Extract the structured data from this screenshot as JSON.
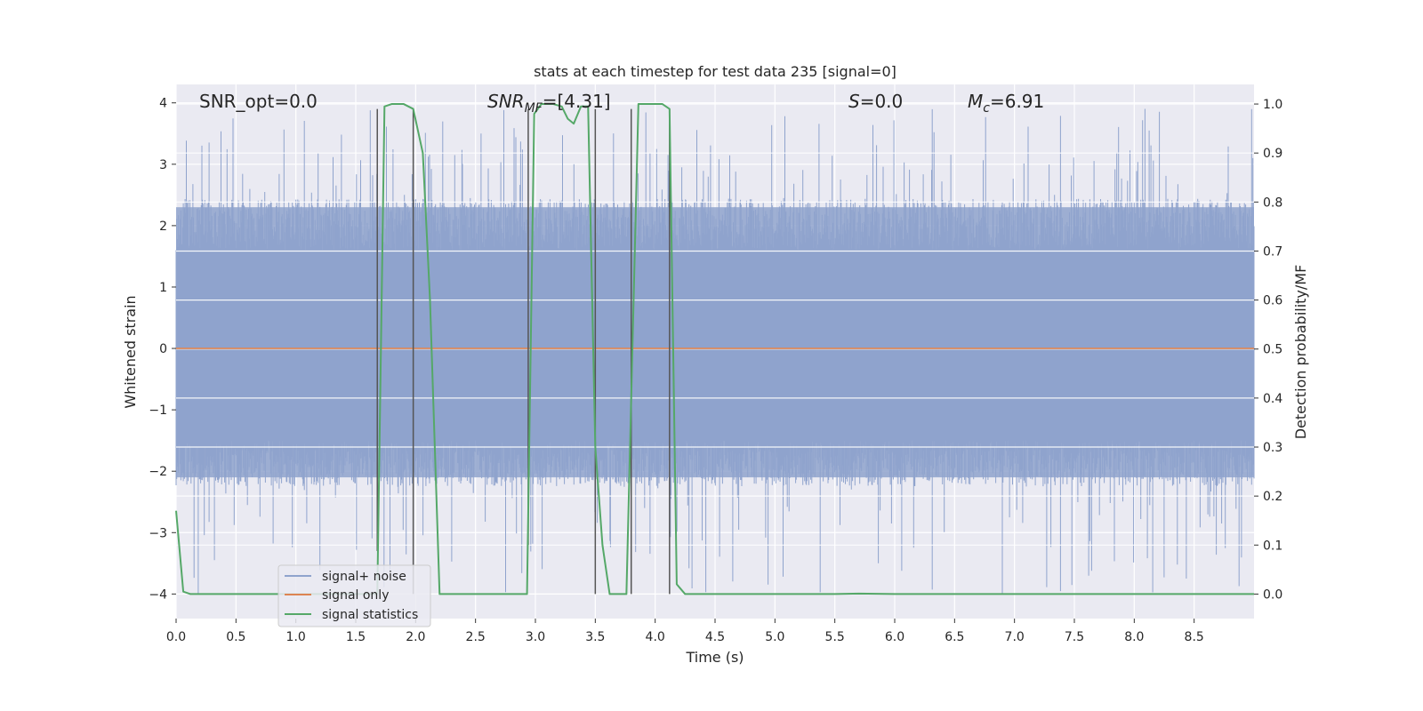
{
  "chart_data": {
    "type": "line",
    "title": "stats at each timestep for test data 235 [signal=0]",
    "xlabel": "Time (s)",
    "ylabel_left": "Whitened strain",
    "ylabel_right": "Detection probability/MF",
    "xlim": [
      0.0,
      9.0
    ],
    "ylim_left": [
      -4.4,
      4.3
    ],
    "ylim_right": [
      -0.05,
      1.04
    ],
    "x_ticks": [
      "0.0",
      "0.5",
      "1.0",
      "1.5",
      "2.0",
      "2.5",
      "3.0",
      "3.5",
      "4.0",
      "4.5",
      "5.0",
      "5.5",
      "6.0",
      "6.5",
      "7.0",
      "7.5",
      "8.0",
      "8.5"
    ],
    "y_ticks_left": [
      "−4",
      "−3",
      "−2",
      "−1",
      "0",
      "1",
      "2",
      "3",
      "4"
    ],
    "y_ticks_right": [
      "0.0",
      "0.1",
      "0.2",
      "0.3",
      "0.4",
      "0.5",
      "0.6",
      "0.7",
      "0.8",
      "0.9",
      "1.0"
    ],
    "grid": true,
    "legend_position": "lower-left",
    "annotations": {
      "snr_opt": "SNR_opt=0.0",
      "snr_mf_main": "SNR",
      "snr_mf_sub": "MF",
      "snr_mf_value": "=[4.31]",
      "s_main": "S",
      "s_value": "=0.0",
      "mc_main": "M",
      "mc_sub": "c",
      "mc_value": "=6.91"
    },
    "series": [
      {
        "name": "signal+ noise",
        "color": "#8fa3cd",
        "axis": "left",
        "description_values": {
          "envelope_upper": 2.3,
          "envelope_lower": -2.1,
          "peak_max": 3.92,
          "peak_min": -4.0
        }
      },
      {
        "name": "signal only",
        "color": "#dd8452",
        "axis": "left",
        "x": [
          0.0,
          9.0
        ],
        "y": [
          0.0,
          0.0
        ]
      },
      {
        "name": "signal statistics",
        "color": "#55a868",
        "axis": "right",
        "x": [
          0.0,
          0.06,
          0.12,
          0.5,
          1.0,
          1.5,
          1.68,
          1.74,
          1.8,
          1.9,
          1.98,
          2.06,
          2.12,
          2.2,
          2.5,
          2.93,
          2.99,
          3.05,
          3.15,
          3.22,
          3.27,
          3.32,
          3.38,
          3.44,
          3.5,
          3.56,
          3.62,
          3.7,
          3.76,
          3.8,
          3.86,
          3.95,
          4.06,
          4.12,
          4.18,
          4.25,
          4.4,
          4.5,
          5.0,
          5.5,
          5.7,
          6.0,
          6.5,
          7.0,
          7.5,
          8.0,
          8.5,
          9.0
        ],
        "y": [
          0.17,
          0.005,
          0.0,
          0.0,
          0.0,
          0.0,
          0.0,
          0.995,
          1.0,
          1.0,
          0.99,
          0.9,
          0.6,
          0.0,
          0.0,
          0.0,
          0.98,
          1.0,
          1.0,
          0.995,
          0.97,
          0.96,
          0.995,
          0.995,
          0.3,
          0.1,
          0.0,
          0.0,
          0.0,
          0.4,
          1.0,
          1.0,
          1.0,
          0.99,
          0.02,
          0.0,
          0.0,
          0.0,
          0.0,
          0.0,
          0.001,
          0.0,
          0.0,
          0.0,
          0.0,
          0.0,
          0.0,
          0.0
        ]
      }
    ],
    "marker_lines": {
      "color": "#555555",
      "x": [
        1.68,
        1.98,
        2.94,
        3.5,
        3.8,
        4.12
      ],
      "y_top_left": [
        3.9,
        3.9,
        3.9,
        3.9,
        3.9,
        3.9
      ],
      "y_bottom_left": [
        -3.3,
        -4.0,
        -3.2,
        -4.0,
        -4.0,
        -4.0
      ]
    }
  }
}
